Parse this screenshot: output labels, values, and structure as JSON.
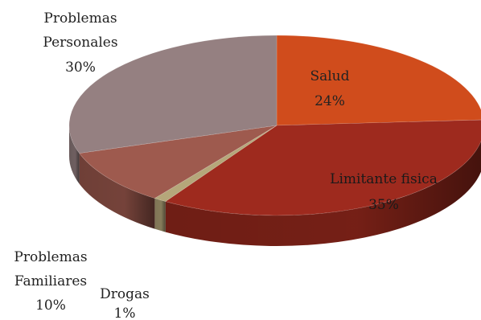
{
  "chart_data": {
    "type": "pie",
    "title": "",
    "start_angle_deg": 0,
    "direction": "clockwise",
    "slices": [
      {
        "label": "Salud",
        "value": 24,
        "value_label": "24%",
        "color": "#D04C1C"
      },
      {
        "label": "Limitante fisica",
        "value": 35,
        "value_label": "35%",
        "color": "#9E2A1E"
      },
      {
        "label": "Drogas",
        "value": 1,
        "value_label": "1%",
        "color": "#B5A77A"
      },
      {
        "label": "Problemas Familiares",
        "value": 10,
        "value_label": "10%",
        "color": "#9E5A4E"
      },
      {
        "label": "Problemas Personales",
        "value": 30,
        "value_label": "30%",
        "color": "#958081"
      }
    ]
  }
}
